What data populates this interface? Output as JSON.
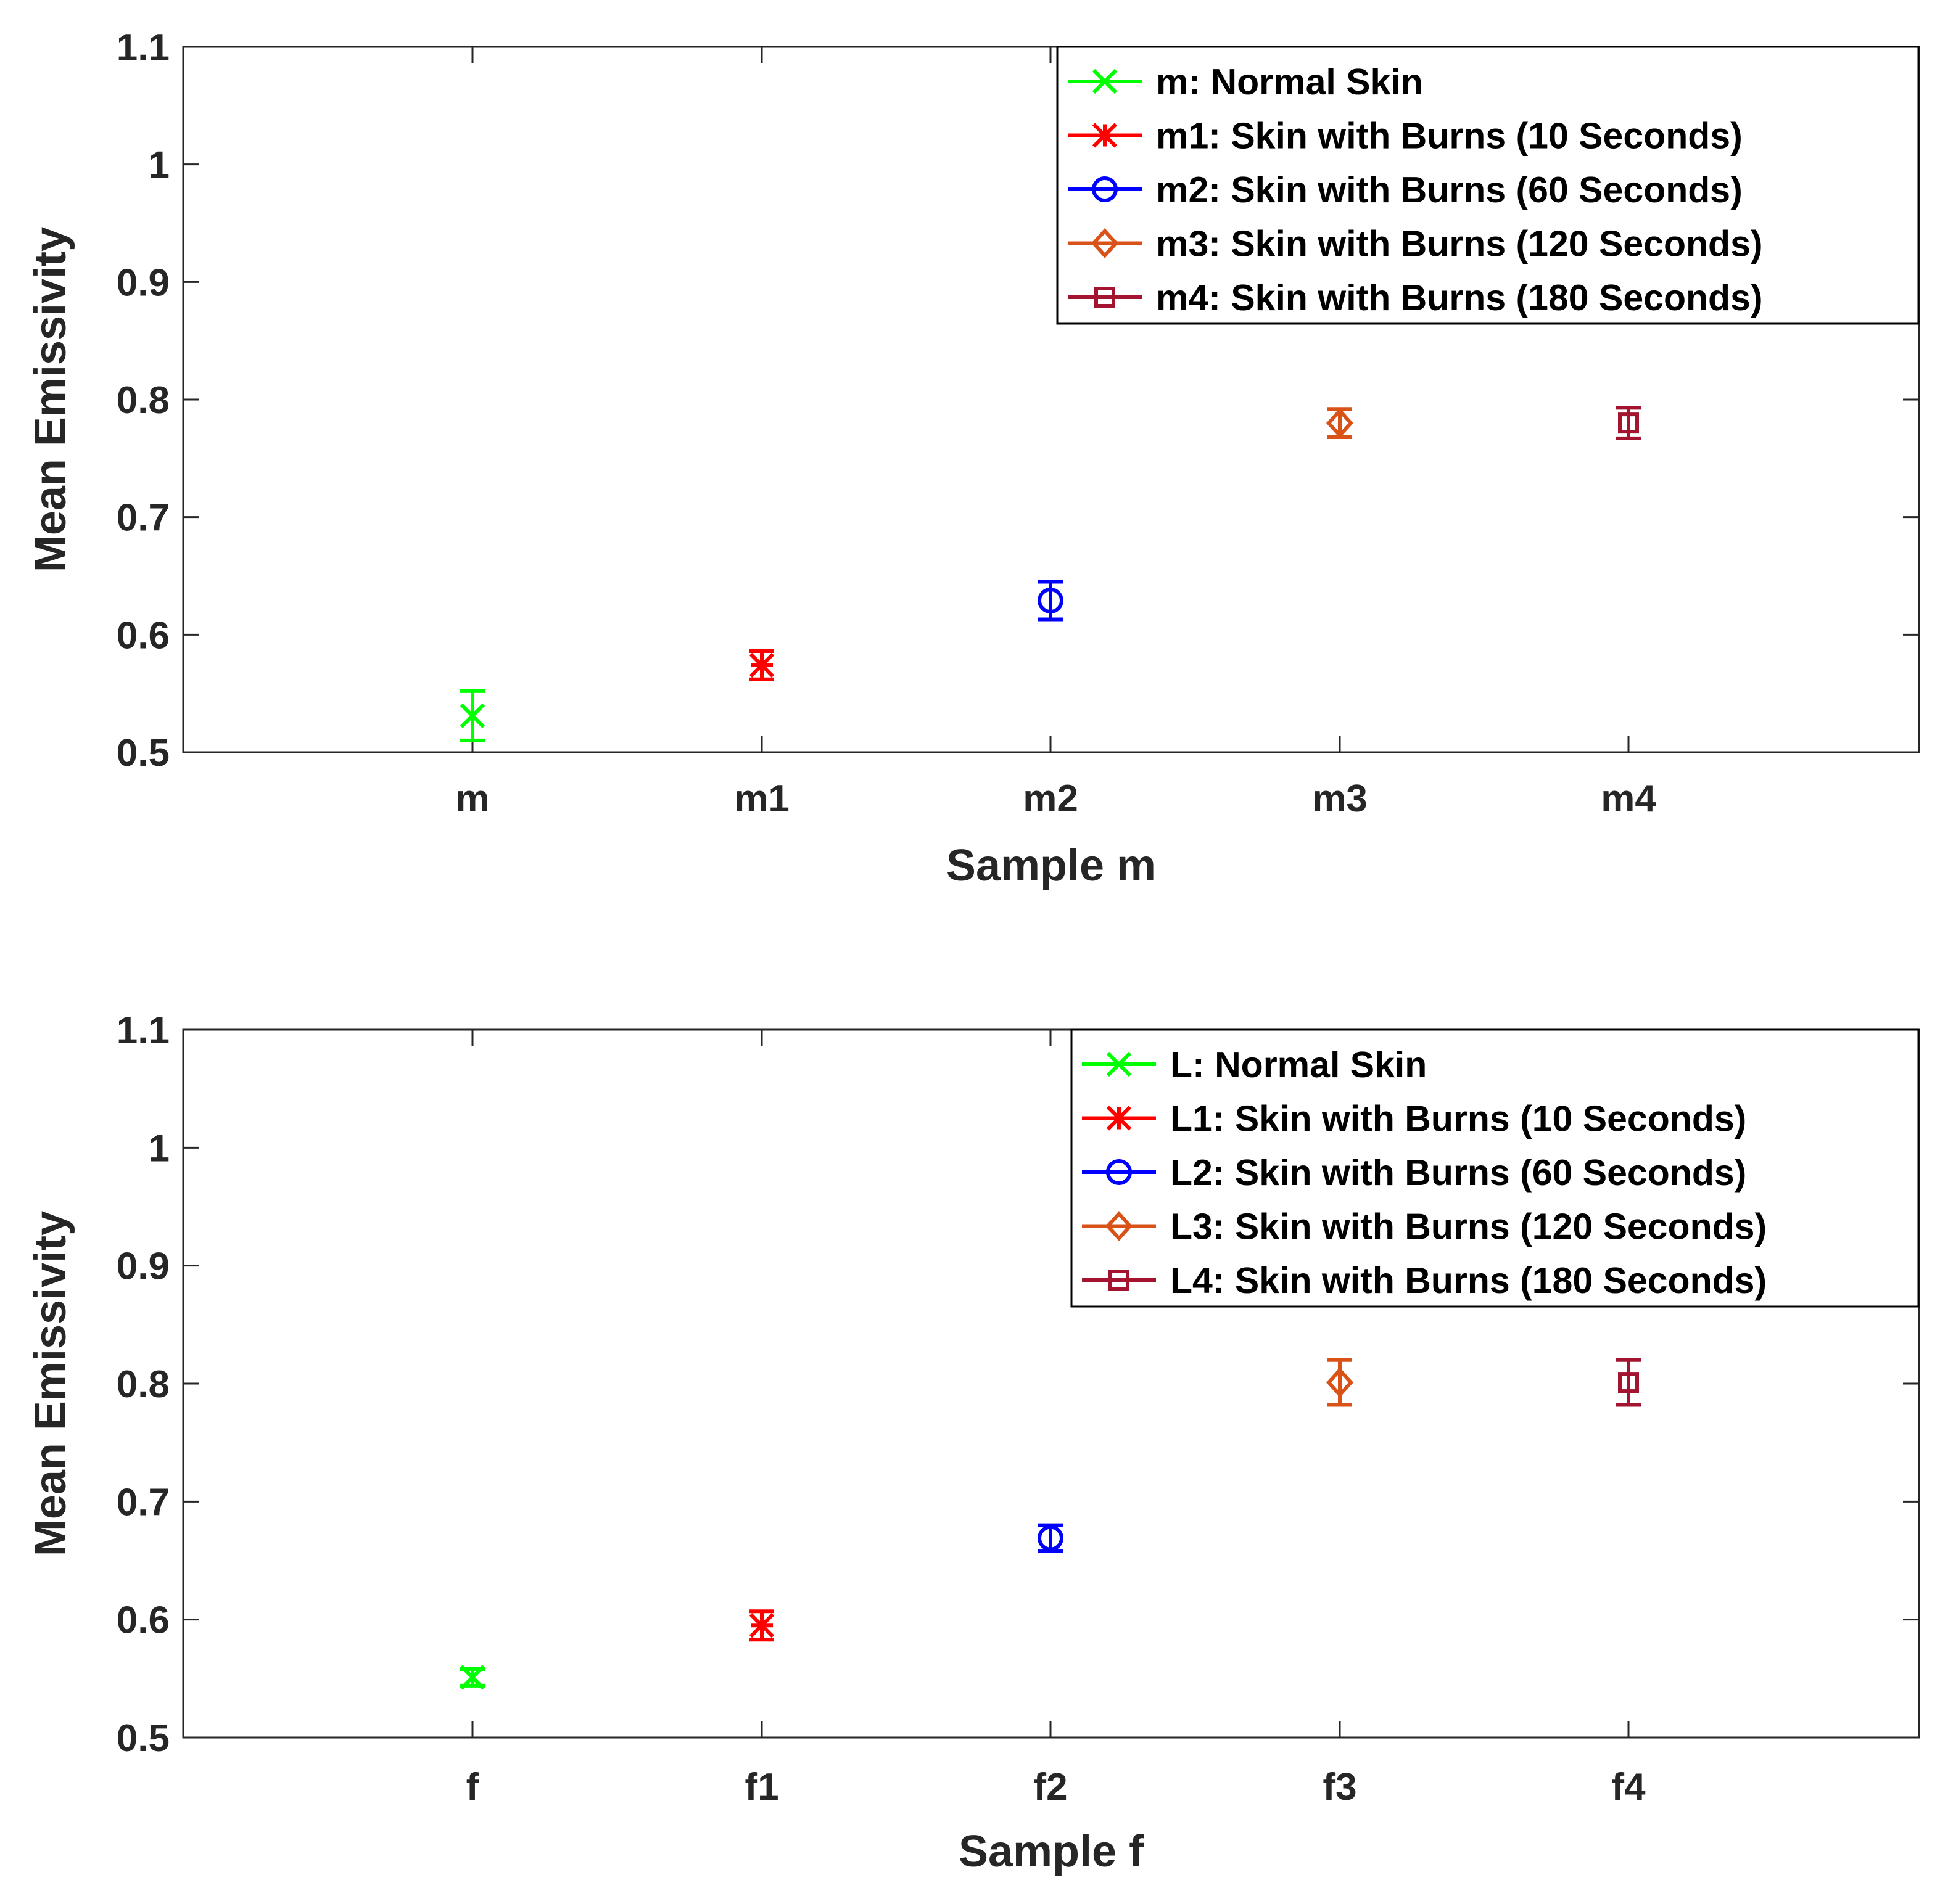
{
  "chart_data": [
    {
      "type": "scatter",
      "xlabel": "Sample m",
      "ylabel": "Mean Emissivity",
      "ylim": [
        0.5,
        1.1
      ],
      "yticks": [
        "0.5",
        "0.6",
        "0.7",
        "0.8",
        "0.9",
        "1",
        "1.1"
      ],
      "legend_position": "top-right",
      "categories": [
        "m",
        "m1",
        "m2",
        "m3",
        "m4"
      ],
      "series": [
        {
          "name": "m: Normal Skin",
          "category": "m",
          "value": 0.531,
          "error": 0.021,
          "color": "#00ff00",
          "marker": "x"
        },
        {
          "name": "m1: Skin with Burns (10 Seconds)",
          "category": "m1",
          "value": 0.574,
          "error": 0.012,
          "color": "#ff0000",
          "marker": "asterisk"
        },
        {
          "name": "m2: Skin with Burns (60 Seconds)",
          "category": "m2",
          "value": 0.629,
          "error": 0.016,
          "color": "#0000ff",
          "marker": "circle"
        },
        {
          "name": "m3: Skin with Burns (120 Seconds)",
          "category": "m3",
          "value": 0.78,
          "error": 0.012,
          "color": "#d95319",
          "marker": "diamond"
        },
        {
          "name": "m4: Skin with Burns (180 Seconds)",
          "category": "m4",
          "value": 0.78,
          "error": 0.013,
          "color": "#a2142f",
          "marker": "square"
        }
      ]
    },
    {
      "type": "scatter",
      "xlabel": "Sample f",
      "ylabel": "Mean Emissivity",
      "ylim": [
        0.5,
        1.1
      ],
      "yticks": [
        "0.5",
        "0.6",
        "0.7",
        "0.8",
        "0.9",
        "1",
        "1.1"
      ],
      "legend_position": "top-right",
      "categories": [
        "f",
        "f1",
        "f2",
        "f3",
        "f4"
      ],
      "series": [
        {
          "name": "L: Normal Skin",
          "category": "f",
          "value": 0.551,
          "error": 0.007,
          "color": "#00ff00",
          "marker": "x"
        },
        {
          "name": "L1: Skin with Burns (10 Seconds)",
          "category": "f1",
          "value": 0.595,
          "error": 0.012,
          "color": "#ff0000",
          "marker": "asterisk"
        },
        {
          "name": "L2: Skin with Burns (60 Seconds)",
          "category": "f2",
          "value": 0.669,
          "error": 0.011,
          "color": "#0000ff",
          "marker": "circle"
        },
        {
          "name": "L3: Skin with Burns (120 Seconds)",
          "category": "f3",
          "value": 0.801,
          "error": 0.019,
          "color": "#d95319",
          "marker": "diamond"
        },
        {
          "name": "L4: Skin with Burns (180 Seconds)",
          "category": "f4",
          "value": 0.801,
          "error": 0.019,
          "color": "#a2142f",
          "marker": "square"
        }
      ]
    }
  ]
}
